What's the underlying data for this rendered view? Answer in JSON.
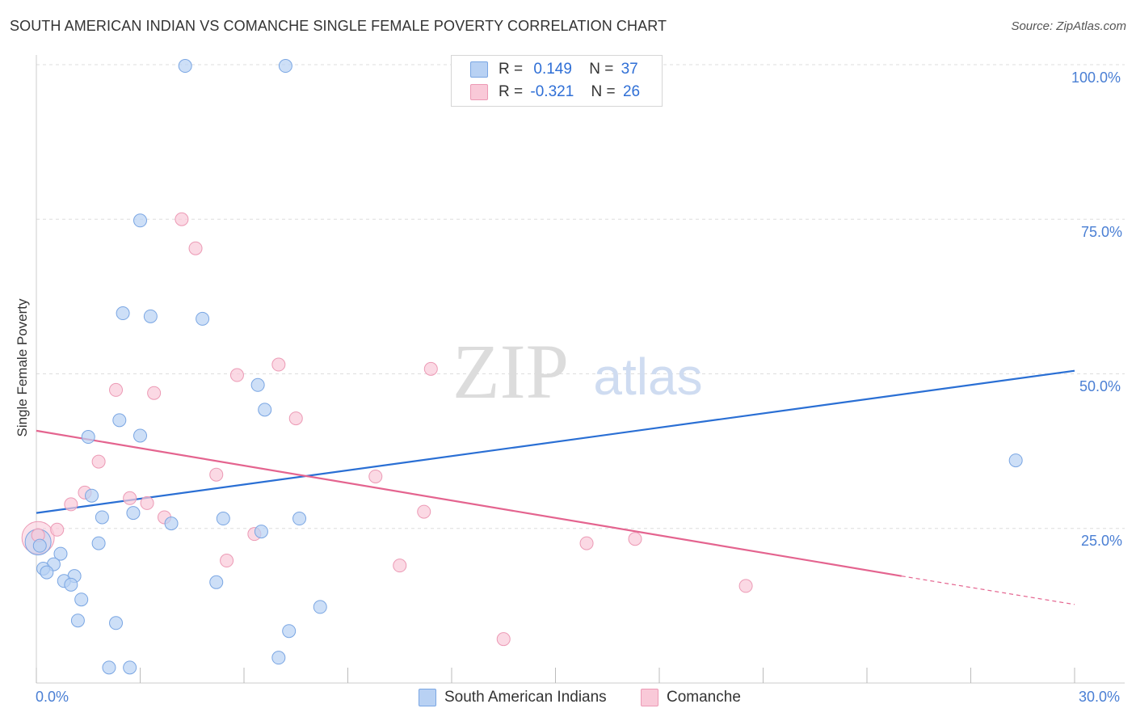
{
  "header": {
    "title": "SOUTH AMERICAN INDIAN VS COMANCHE SINGLE FEMALE POVERTY CORRELATION CHART",
    "source": "Source: ZipAtlas.com"
  },
  "legend": {
    "series1": {
      "r_label": "R =",
      "r_value": "0.149",
      "n_label": "N =",
      "n_value": "37"
    },
    "series2": {
      "r_label": "R =",
      "r_value": "-0.321",
      "n_label": "N =",
      "n_value": "26"
    }
  },
  "bottom_legend": {
    "series1": "South American Indians",
    "series2": "Comanche"
  },
  "colors": {
    "blue_fill": "#b8d1f3",
    "blue_stroke": "#7aa6e3",
    "blue_line": "#2a6fd4",
    "pink_fill": "#f9c9d8",
    "pink_stroke": "#ec9ab5",
    "pink_line": "#e4648f",
    "tick_text": "#4a7fd4"
  },
  "watermark": {
    "zip": "ZIP",
    "atlas": "atlas"
  },
  "chart_data": {
    "type": "scatter",
    "title": "SOUTH AMERICAN INDIAN VS COMANCHE SINGLE FEMALE POVERTY CORRELATION CHART",
    "xlabel": "",
    "ylabel": "Single Female Poverty",
    "xlim": [
      0,
      30
    ],
    "ylim": [
      0,
      100
    ],
    "x_tick_labels": [
      "0.0%",
      "30.0%"
    ],
    "y_tick_labels": [
      "100.0%",
      "75.0%",
      "50.0%",
      "25.0%"
    ],
    "y_tick_values": [
      100,
      75,
      50,
      25
    ],
    "series": [
      {
        "name": "South American Indians",
        "r": 0.149,
        "n": 37,
        "trend": {
          "x": [
            0,
            30
          ],
          "y": [
            27.5,
            50.5
          ]
        },
        "points": [
          {
            "x": 4.3,
            "y": 99.8
          },
          {
            "x": 7.2,
            "y": 99.8
          },
          {
            "x": 3.0,
            "y": 74.8
          },
          {
            "x": 2.5,
            "y": 59.8
          },
          {
            "x": 3.3,
            "y": 59.3
          },
          {
            "x": 4.8,
            "y": 58.9
          },
          {
            "x": 6.4,
            "y": 48.2
          },
          {
            "x": 6.6,
            "y": 44.2
          },
          {
            "x": 2.4,
            "y": 42.5
          },
          {
            "x": 3.0,
            "y": 40.0
          },
          {
            "x": 1.5,
            "y": 39.8
          },
          {
            "x": 28.3,
            "y": 36.0
          },
          {
            "x": 1.6,
            "y": 30.3
          },
          {
            "x": 2.8,
            "y": 27.5
          },
          {
            "x": 1.9,
            "y": 26.8
          },
          {
            "x": 3.9,
            "y": 25.8
          },
          {
            "x": 5.4,
            "y": 26.6
          },
          {
            "x": 7.6,
            "y": 26.6
          },
          {
            "x": 6.5,
            "y": 24.5
          },
          {
            "x": 1.8,
            "y": 22.6
          },
          {
            "x": 0.1,
            "y": 22.2
          },
          {
            "x": 0.7,
            "y": 20.9
          },
          {
            "x": 0.5,
            "y": 19.2
          },
          {
            "x": 0.2,
            "y": 18.5
          },
          {
            "x": 0.3,
            "y": 17.9
          },
          {
            "x": 1.1,
            "y": 17.3
          },
          {
            "x": 0.8,
            "y": 16.5
          },
          {
            "x": 1.0,
            "y": 15.9
          },
          {
            "x": 5.2,
            "y": 16.3
          },
          {
            "x": 1.3,
            "y": 13.5
          },
          {
            "x": 8.2,
            "y": 12.3
          },
          {
            "x": 1.2,
            "y": 10.1
          },
          {
            "x": 2.3,
            "y": 9.7
          },
          {
            "x": 7.3,
            "y": 8.4
          },
          {
            "x": 7.0,
            "y": 4.1
          },
          {
            "x": 2.1,
            "y": 2.5
          },
          {
            "x": 2.7,
            "y": 2.5
          }
        ]
      },
      {
        "name": "Comanche",
        "r": -0.321,
        "n": 26,
        "trend": {
          "x": [
            0,
            25.0,
            30
          ],
          "y": [
            40.8,
            17.3,
            12.7
          ],
          "dashed_from_x": 25.0
        },
        "points": [
          {
            "x": 4.2,
            "y": 75.0
          },
          {
            "x": 4.6,
            "y": 70.3
          },
          {
            "x": 7.0,
            "y": 51.5
          },
          {
            "x": 11.4,
            "y": 50.8
          },
          {
            "x": 5.8,
            "y": 49.8
          },
          {
            "x": 2.3,
            "y": 47.4
          },
          {
            "x": 3.4,
            "y": 46.9
          },
          {
            "x": 7.5,
            "y": 42.8
          },
          {
            "x": 1.8,
            "y": 35.8
          },
          {
            "x": 5.2,
            "y": 33.7
          },
          {
            "x": 9.8,
            "y": 33.4
          },
          {
            "x": 1.4,
            "y": 30.8
          },
          {
            "x": 2.7,
            "y": 29.9
          },
          {
            "x": 3.2,
            "y": 29.1
          },
          {
            "x": 1.0,
            "y": 28.9
          },
          {
            "x": 11.2,
            "y": 27.7
          },
          {
            "x": 3.7,
            "y": 26.8
          },
          {
            "x": 0.6,
            "y": 24.8
          },
          {
            "x": 6.3,
            "y": 24.1
          },
          {
            "x": 0.05,
            "y": 23.9
          },
          {
            "x": 17.3,
            "y": 23.3
          },
          {
            "x": 15.9,
            "y": 22.6
          },
          {
            "x": 5.5,
            "y": 19.8
          },
          {
            "x": 10.5,
            "y": 19.0
          },
          {
            "x": 20.5,
            "y": 15.7
          },
          {
            "x": 13.5,
            "y": 7.1
          }
        ]
      }
    ]
  }
}
